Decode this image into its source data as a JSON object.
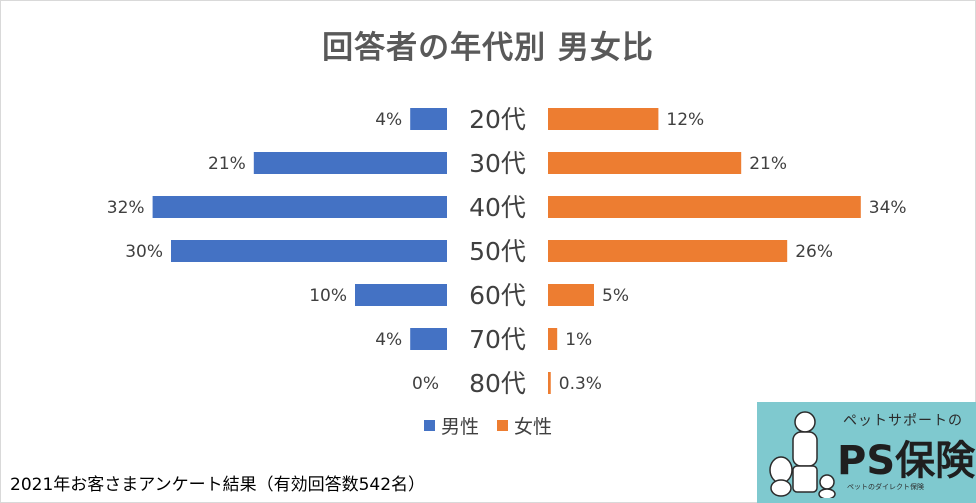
{
  "chart_data": {
    "type": "bar",
    "title": "回答者の年代別 男女比",
    "categories": [
      "20代",
      "30代",
      "40代",
      "50代",
      "60代",
      "70代",
      "80代"
    ],
    "series": [
      {
        "name": "男性",
        "values": [
          4,
          21,
          32,
          30,
          10,
          4,
          0
        ],
        "labels": [
          "4%",
          "21%",
          "32%",
          "30%",
          "10%",
          "4%",
          "0%"
        ],
        "color": "#4472c4"
      },
      {
        "name": "女性",
        "values": [
          12,
          21,
          34,
          26,
          5,
          1,
          0.3
        ],
        "labels": [
          "12%",
          "21%",
          "34%",
          "26%",
          "5%",
          "1%",
          "0.3%"
        ],
        "color": "#ed7d31"
      }
    ],
    "legend": "bottom",
    "grid": false
  },
  "footer": "2021年お客さまアンケート結果（有効回答数542名）",
  "logo": {
    "tagline": "ペットサポートの",
    "name": "PS保険",
    "sub": "ペットのダイレクト保険"
  }
}
